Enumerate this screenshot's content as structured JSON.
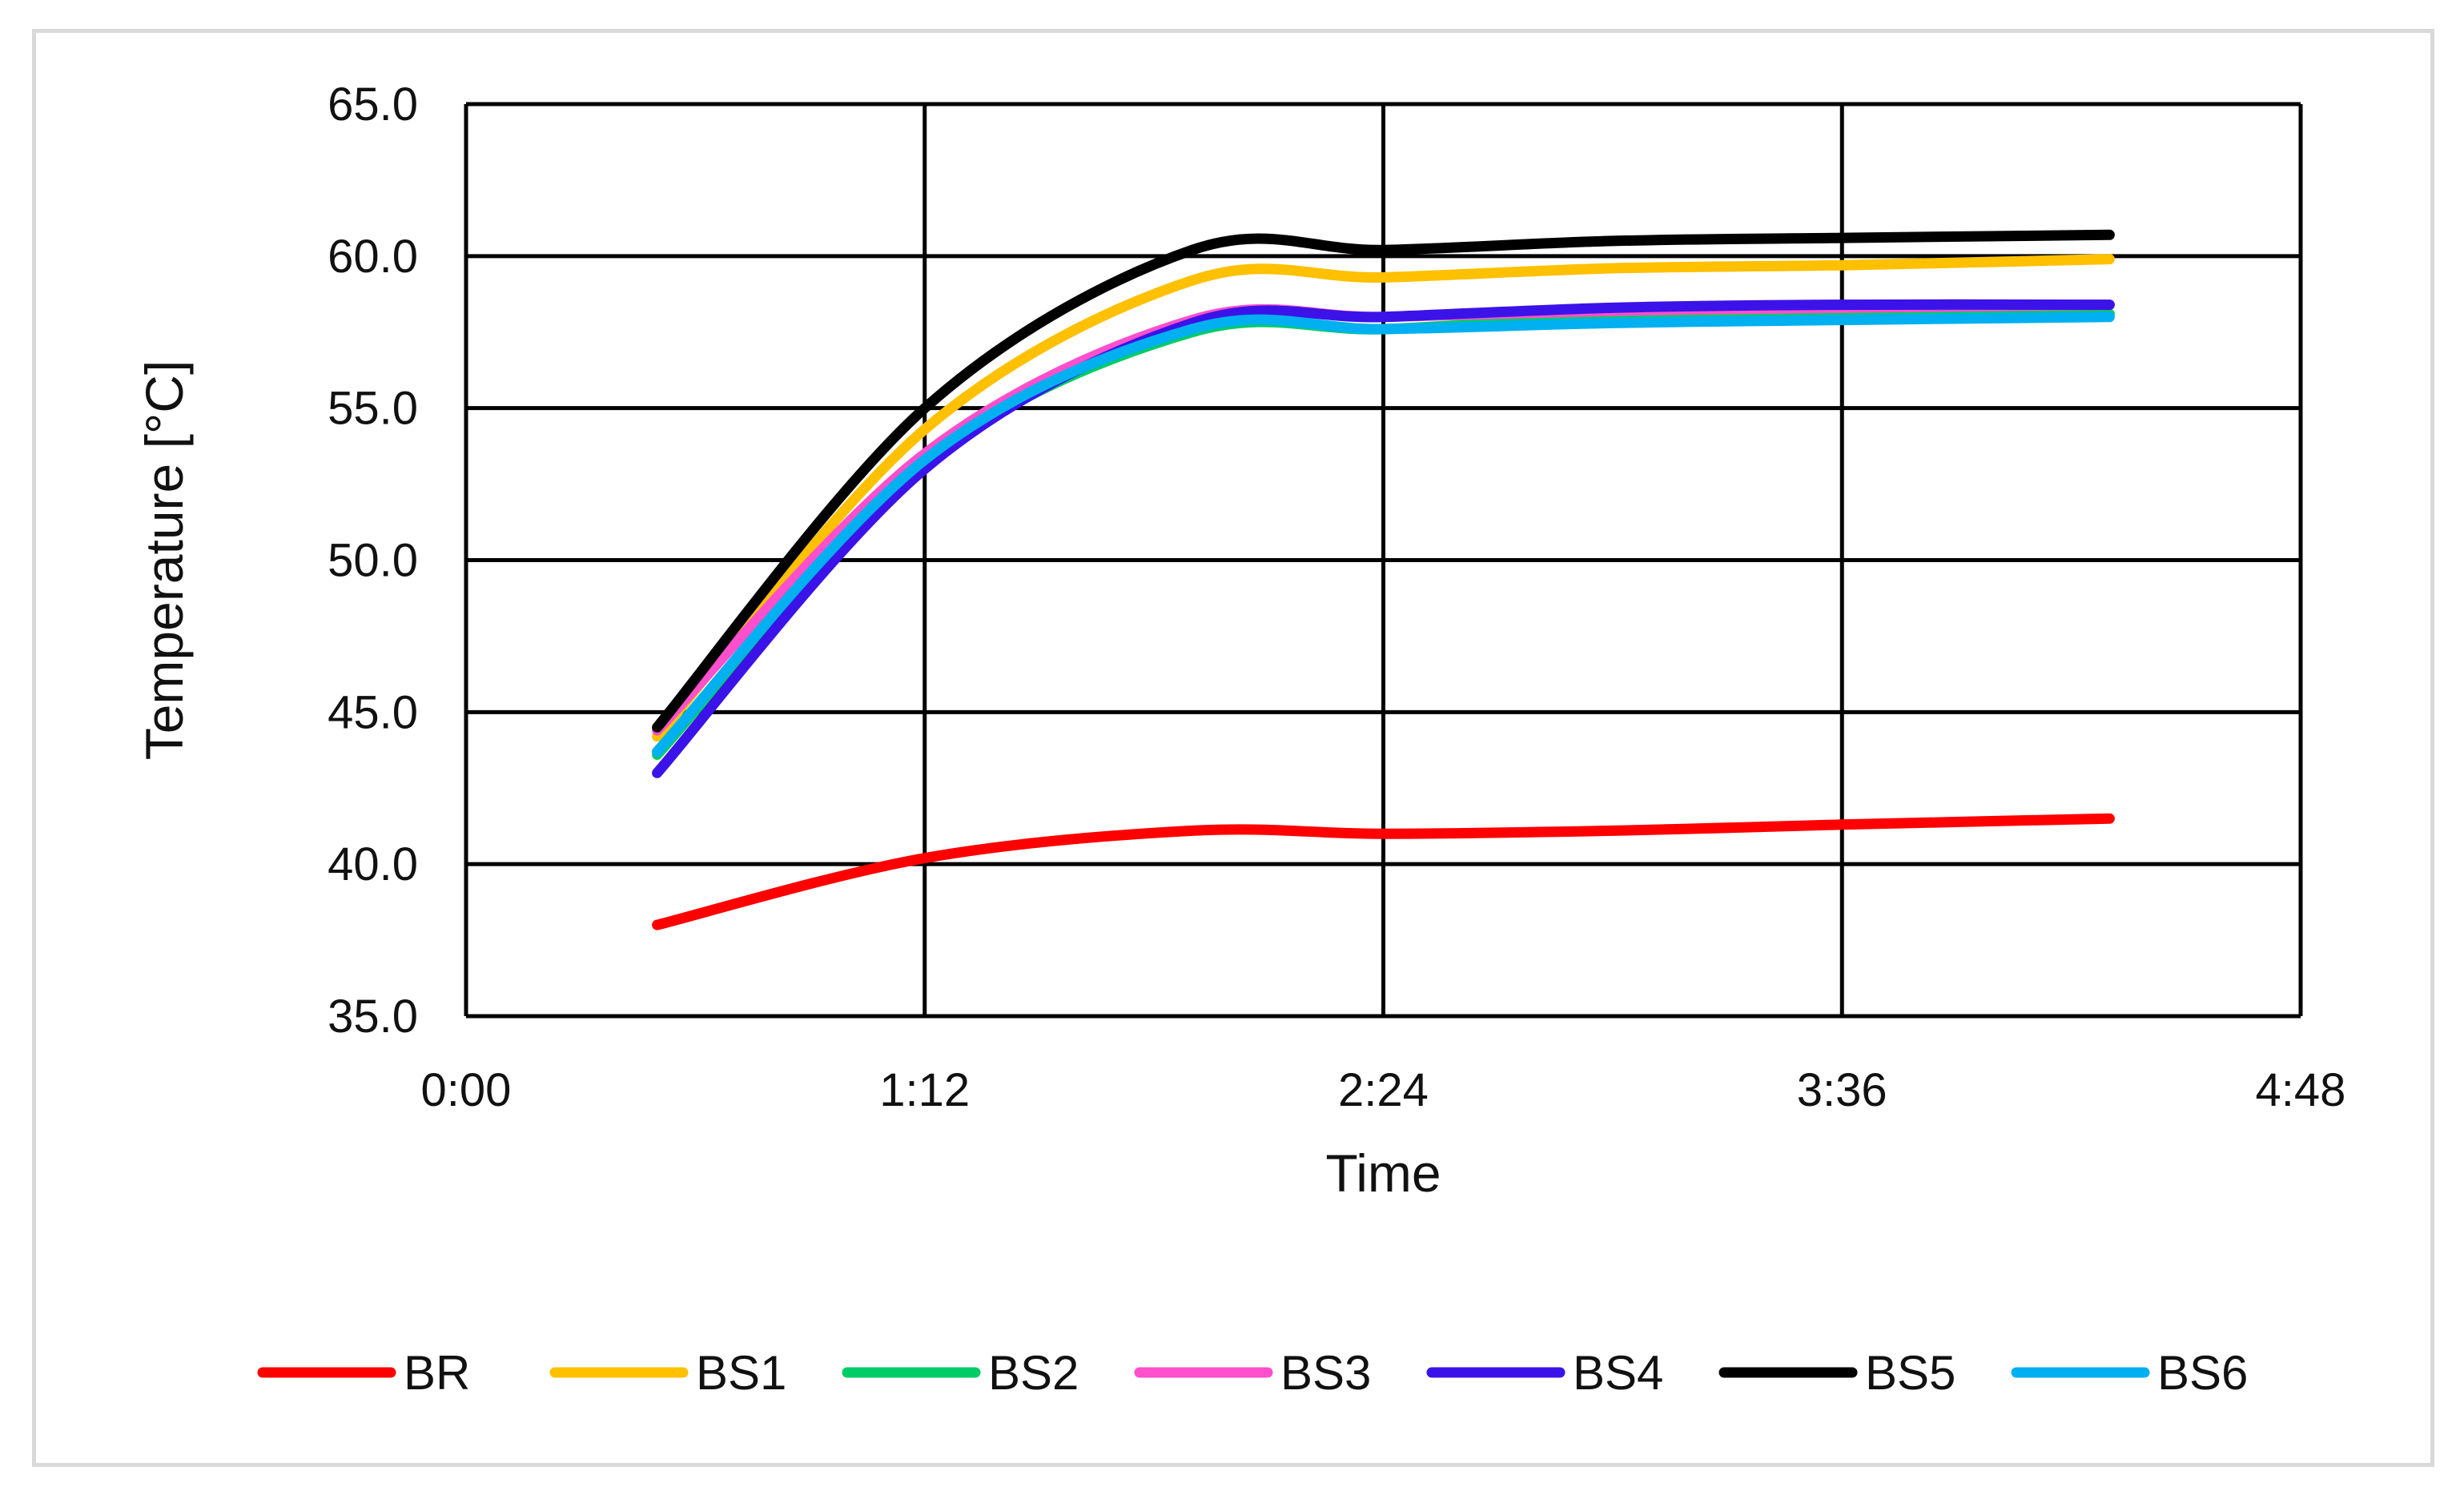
{
  "chart_data": {
    "type": "line",
    "title": "",
    "xlabel": "Time",
    "ylabel": "Temperature [°C]",
    "x_unit": "h:mm",
    "xlim": [
      "0:00",
      "4:48"
    ],
    "ylim": [
      35.0,
      65.0
    ],
    "x_ticks": [
      "0:00",
      "1:12",
      "2:24",
      "3:36",
      "4:48"
    ],
    "y_ticks": [
      "35.0",
      "40.0",
      "45.0",
      "50.0",
      "55.0",
      "60.0",
      "65.0"
    ],
    "grid": true,
    "legend_position": "bottom",
    "x": [
      "0:30",
      "1:12",
      "1:54",
      "2:24",
      "3:00",
      "3:36",
      "4:18"
    ],
    "series": [
      {
        "name": "BR",
        "color": "#ff0000",
        "values": [
          38.0,
          40.2,
          41.1,
          41.0,
          41.1,
          41.3,
          41.5
        ]
      },
      {
        "name": "BS1",
        "color": "#ffc000",
        "values": [
          44.2,
          54.3,
          59.2,
          59.3,
          59.6,
          59.7,
          59.9
        ]
      },
      {
        "name": "BS2",
        "color": "#00cc66",
        "values": [
          43.6,
          53.2,
          57.5,
          57.6,
          58.0,
          58.1,
          58.1
        ]
      },
      {
        "name": "BS3",
        "color": "#ff4fcc",
        "values": [
          44.4,
          53.5,
          57.9,
          58.0,
          58.2,
          58.3,
          58.4
        ]
      },
      {
        "name": "BS4",
        "color": "#3b13e8",
        "values": [
          43.0,
          53.0,
          57.8,
          58.0,
          58.3,
          58.4,
          58.4
        ]
      },
      {
        "name": "BS5",
        "color": "#000000",
        "values": [
          44.5,
          55.0,
          60.2,
          60.2,
          60.5,
          60.6,
          60.7
        ]
      },
      {
        "name": "BS6",
        "color": "#00b0f0",
        "values": [
          43.7,
          53.3,
          57.6,
          57.6,
          57.8,
          57.9,
          58.0
        ]
      }
    ]
  }
}
